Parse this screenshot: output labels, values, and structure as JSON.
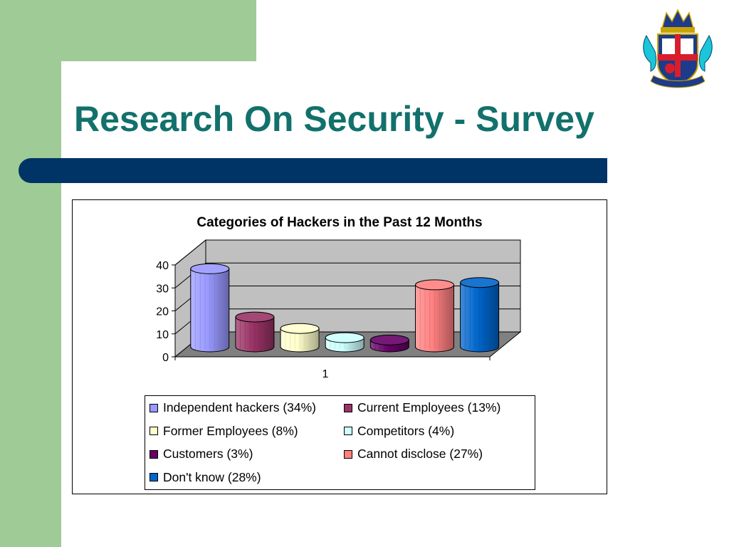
{
  "slide": {
    "title": "Research On Security - Survey",
    "colors": {
      "accent_green": "#9fcc96",
      "title_teal": "#12716c",
      "rule_navy": "#003366"
    },
    "logo_icon": "university-crest-icon"
  },
  "chart_data": {
    "type": "bar",
    "style": "3d-cylinder",
    "title": "Categories of Hackers in the Past 12 Months",
    "categories": [
      "1"
    ],
    "ylim": [
      0,
      40
    ],
    "yticks": [
      "0",
      "10",
      "20",
      "30",
      "40"
    ],
    "grid": true,
    "legend_position": "bottom",
    "series": [
      {
        "name": "Independent hackers (34%)",
        "values": [
          34
        ],
        "color": "#9999ff"
      },
      {
        "name": "Current Employees (13%)",
        "values": [
          13
        ],
        "color": "#993366"
      },
      {
        "name": "Former Employees (8%)",
        "values": [
          8
        ],
        "color": "#ffffcc"
      },
      {
        "name": "Competitors (4%)",
        "values": [
          4
        ],
        "color": "#ccffff"
      },
      {
        "name": "Customers (3%)",
        "values": [
          3
        ],
        "color": "#660066"
      },
      {
        "name": "Cannot disclose (27%)",
        "values": [
          27
        ],
        "color": "#ff8080"
      },
      {
        "name": "Don't know (28%)",
        "values": [
          28
        ],
        "color": "#0066cc"
      }
    ]
  }
}
